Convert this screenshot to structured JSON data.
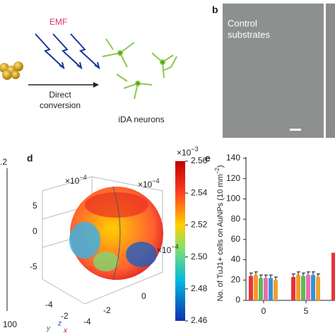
{
  "panel_a": {
    "emf_label": "EMF",
    "arrow_label_line1": "Direct",
    "arrow_label_line2": "conversion",
    "neurons_label": "iDA neurons"
  },
  "panel_b": {
    "label": "b",
    "image_label_line1": "Control",
    "image_label_line2": "substrates"
  },
  "panel_c": {
    "tick_top": ".2",
    "tick_bottom": "100"
  },
  "panel_d": {
    "label": "d",
    "colorbar": {
      "base": "×10",
      "exponent": "−3",
      "ylim": [
        2.46,
        2.56
      ],
      "ticks": [
        2.56,
        2.54,
        2.52,
        2.5,
        2.48,
        2.46
      ]
    },
    "axis_exponents": [
      {
        "base": "×10",
        "exponent": "−4"
      },
      {
        "base": "×10",
        "exponent": "−4"
      },
      {
        "base": "×10",
        "exponent": "−4"
      }
    ],
    "z_ticks": [
      5,
      0,
      -5
    ],
    "y_ticks": [
      -4,
      -2
    ],
    "x_ticks": [
      -4,
      -2,
      0
    ],
    "axis_labels": [
      "y",
      "z",
      "x"
    ]
  },
  "panel_e": {
    "label": "e",
    "type": "bar",
    "y_label": "No. of TuJ1+ cells on AuNPs (10 mm",
    "y_label_exponent": "−2",
    "y_label_end": ")",
    "categories": [
      0,
      5
    ],
    "ylim": [
      0,
      140
    ],
    "yticks": [
      0,
      20,
      40,
      60,
      80,
      100,
      120,
      140
    ],
    "series": [
      {
        "color": "#e8333a",
        "values": [
          24,
          23
        ],
        "errors": [
          3,
          3
        ]
      },
      {
        "color": "#f59a2a",
        "values": [
          25,
          25
        ],
        "errors": [
          3,
          3
        ]
      },
      {
        "color": "#5cb85c",
        "values": [
          22,
          24
        ],
        "errors": [
          3,
          3
        ]
      },
      {
        "color": "#e86fb0",
        "values": [
          22,
          25
        ],
        "errors": [
          3,
          3
        ]
      },
      {
        "color": "#3a8fd8",
        "values": [
          22,
          25
        ],
        "errors": [
          3,
          3
        ]
      },
      {
        "color": "#f0a030",
        "values": [
          20,
          23
        ],
        "errors": [
          3,
          3
        ]
      }
    ],
    "partial_bar": {
      "color": "#e8333a",
      "value": 47
    }
  }
}
